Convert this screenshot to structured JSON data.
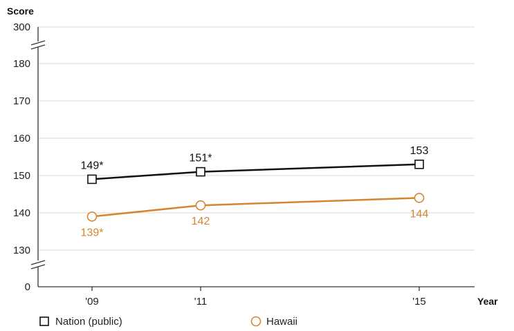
{
  "chart_data": {
    "type": "line",
    "ylabel": "Score",
    "xlabel": "Year",
    "x": [
      "'09",
      "'11",
      "'15"
    ],
    "yticks": [
      "300",
      "180",
      "170",
      "160",
      "150",
      "140",
      "130",
      "0"
    ],
    "ylim": [
      130,
      180
    ],
    "axis_breaks": [
      "between 180 and 300",
      "between 0 and 130"
    ],
    "grid": true,
    "legend_position": "bottom",
    "series": [
      {
        "name": "Nation (public)",
        "values": [
          149,
          151,
          153
        ],
        "data_labels": [
          "149*",
          "151*",
          "153"
        ],
        "color": "#111111",
        "marker": "square"
      },
      {
        "name": "Hawaii",
        "values": [
          139,
          142,
          144
        ],
        "data_labels": [
          "139*",
          "142",
          "144"
        ],
        "color": "#d4862e",
        "marker": "circle"
      }
    ]
  }
}
